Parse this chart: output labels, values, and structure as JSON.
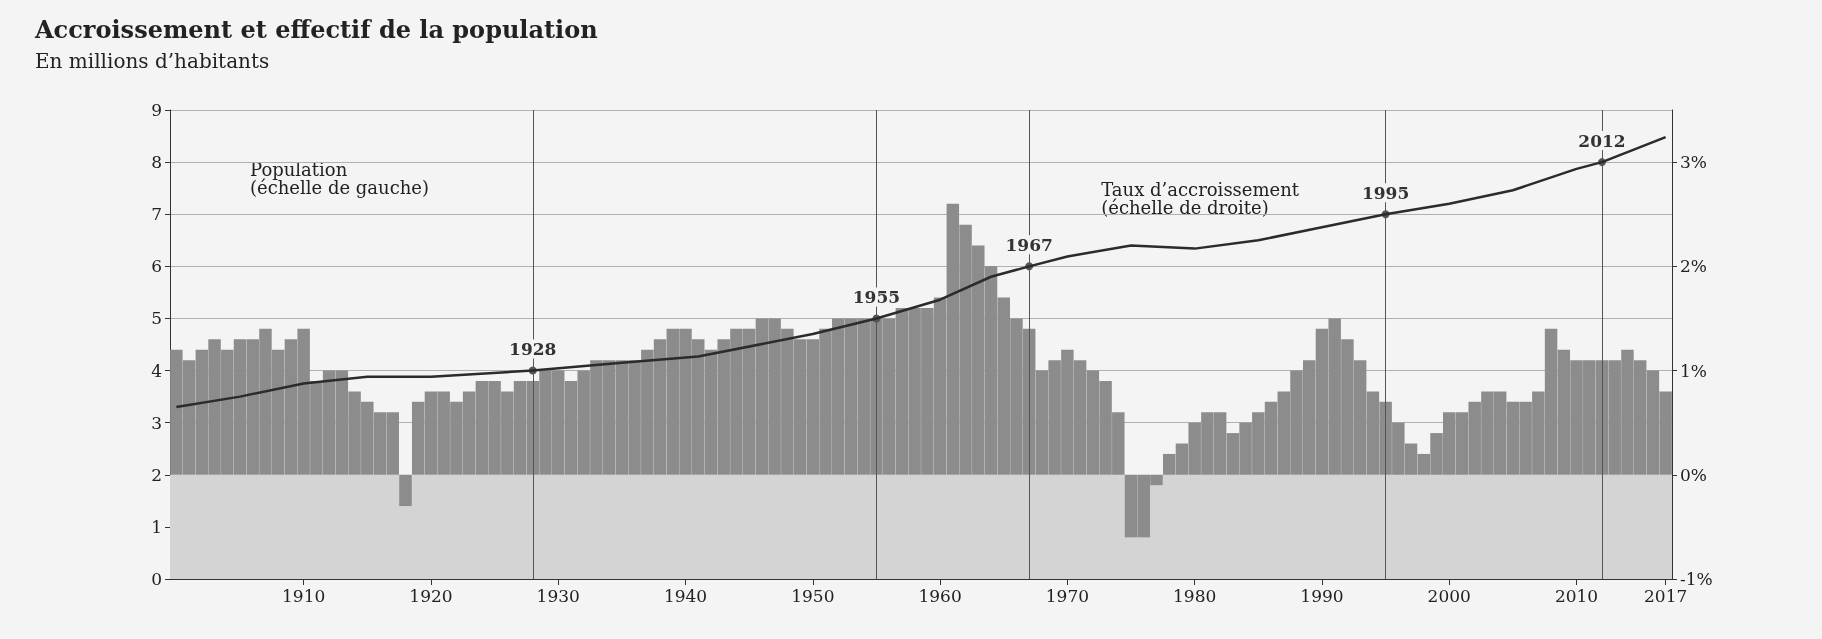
{
  "chart_data": {
    "type": "bar",
    "title": "Accroissement et effectif de la population",
    "subtitle": "En millions d’habitants",
    "ylabel": "Population (échelle de gauche)",
    "y2label": "Taux d’accroissement (échelle de droite)",
    "x": [
      1900,
      1901,
      1902,
      1903,
      1904,
      1905,
      1906,
      1907,
      1908,
      1909,
      1910,
      1911,
      1912,
      1913,
      1914,
      1915,
      1916,
      1917,
      1918,
      1919,
      1920,
      1921,
      1922,
      1923,
      1924,
      1925,
      1926,
      1927,
      1928,
      1929,
      1930,
      1931,
      1932,
      1933,
      1934,
      1935,
      1936,
      1937,
      1938,
      1939,
      1940,
      1941,
      1942,
      1943,
      1944,
      1945,
      1946,
      1947,
      1948,
      1949,
      1950,
      1951,
      1952,
      1953,
      1954,
      1955,
      1956,
      1957,
      1958,
      1959,
      1960,
      1961,
      1962,
      1963,
      1964,
      1965,
      1966,
      1967,
      1968,
      1969,
      1970,
      1971,
      1972,
      1973,
      1974,
      1975,
      1976,
      1977,
      1978,
      1979,
      1980,
      1981,
      1982,
      1983,
      1984,
      1985,
      1986,
      1987,
      1988,
      1989,
      1990,
      1991,
      1992,
      1993,
      1994,
      1995,
      1996,
      1997,
      1998,
      1999,
      2000,
      2001,
      2002,
      2003,
      2004,
      2005,
      2006,
      2007,
      2008,
      2009,
      2010,
      2011,
      2012,
      2013,
      2014,
      2015,
      2016,
      2017
    ],
    "series": [
      {
        "axis": "y2",
        "color": "#8c8c8c",
        "values": [
          1.2,
          1.1,
          1.2,
          1.3,
          1.2,
          1.3,
          1.3,
          1.4,
          1.2,
          1.3,
          1.4,
          0.9,
          1.0,
          1.0,
          0.8,
          0.7,
          0.6,
          0.6,
          -0.3,
          0.7,
          0.8,
          0.8,
          0.7,
          0.8,
          0.9,
          0.9,
          0.8,
          0.9,
          0.9,
          1.0,
          1.0,
          0.9,
          1.0,
          1.1,
          1.1,
          1.1,
          1.1,
          1.2,
          1.3,
          1.4,
          1.4,
          1.3,
          1.2,
          1.3,
          1.4,
          1.4,
          1.5,
          1.5,
          1.4,
          1.3,
          1.3,
          1.4,
          1.5,
          1.5,
          1.5,
          1.5,
          1.5,
          1.6,
          1.6,
          1.6,
          1.7,
          2.6,
          2.4,
          2.2,
          2.0,
          1.7,
          1.5,
          1.4,
          1.0,
          1.1,
          1.2,
          1.1,
          1.0,
          0.9,
          0.6,
          -0.6,
          -0.6,
          -0.1,
          0.2,
          0.3,
          0.5,
          0.6,
          0.6,
          0.4,
          0.5,
          0.6,
          0.7,
          0.8,
          1.0,
          1.1,
          1.4,
          1.5,
          1.3,
          1.1,
          0.8,
          0.7,
          0.5,
          0.3,
          0.2,
          0.4,
          0.6,
          0.6,
          0.7,
          0.8,
          0.8,
          0.7,
          0.7,
          0.8,
          1.4,
          1.2,
          1.1,
          1.1,
          1.1,
          1.1,
          1.2,
          1.1,
          1.0,
          0.8
        ]
      },
      {
        "type": "line",
        "color": "#2b2b2b",
        "x": [
          1900,
          1905,
          1910,
          1915,
          1920,
          1928,
          1935,
          1941,
          1950,
          1955,
          1960,
          1964,
          1967,
          1970,
          1975,
          1980,
          1985,
          1990,
          1995,
          2000,
          2005,
          2010,
          2012,
          2017
        ],
        "values": [
          3.3,
          3.5,
          3.75,
          3.88,
          3.88,
          4.0,
          4.15,
          4.27,
          4.7,
          5.0,
          5.36,
          5.8,
          6.0,
          6.19,
          6.4,
          6.34,
          6.5,
          6.75,
          7.0,
          7.2,
          7.46,
          7.87,
          8.0,
          8.48
        ]
      }
    ],
    "xlim": [
      1899.5,
      2017.5
    ],
    "xticks": [
      1910,
      1920,
      1930,
      1940,
      1950,
      1960,
      1970,
      1980,
      1990,
      2000,
      2010,
      2017
    ],
    "ylim": [
      0,
      9
    ],
    "yticks": [
      0,
      1,
      2,
      3,
      4,
      5,
      6,
      7,
      8,
      9
    ],
    "y2lim": [
      -1,
      3.5
    ],
    "y2ticks": [
      {
        "value": -1,
        "label": "-1%"
      },
      {
        "value": 0,
        "label": "0%"
      },
      {
        "value": 1,
        "label": "1%"
      },
      {
        "value": 2,
        "label": "2%"
      },
      {
        "value": 3,
        "label": "3%"
      }
    ],
    "grid": "y",
    "bands": [
      {
        "axis": "y2",
        "from": -1,
        "to": 0,
        "color": "#d4d4d4"
      }
    ],
    "ref_lines": [
      {
        "axis": "x",
        "value": 1928
      },
      {
        "axis": "x",
        "value": 1955
      },
      {
        "axis": "x",
        "value": 1967
      },
      {
        "axis": "x",
        "value": 1995
      },
      {
        "axis": "x",
        "value": 2012
      }
    ],
    "annotations": [
      {
        "text": "1928",
        "x": 1928,
        "y": 4.0
      },
      {
        "text": "1955",
        "x": 1955,
        "y": 5.0
      },
      {
        "text": "1967",
        "x": 1967,
        "y": 6.0
      },
      {
        "text": "1995",
        "x": 1995,
        "y": 7.0
      },
      {
        "text": "2012",
        "x": 2012,
        "y": 8.0
      }
    ]
  }
}
